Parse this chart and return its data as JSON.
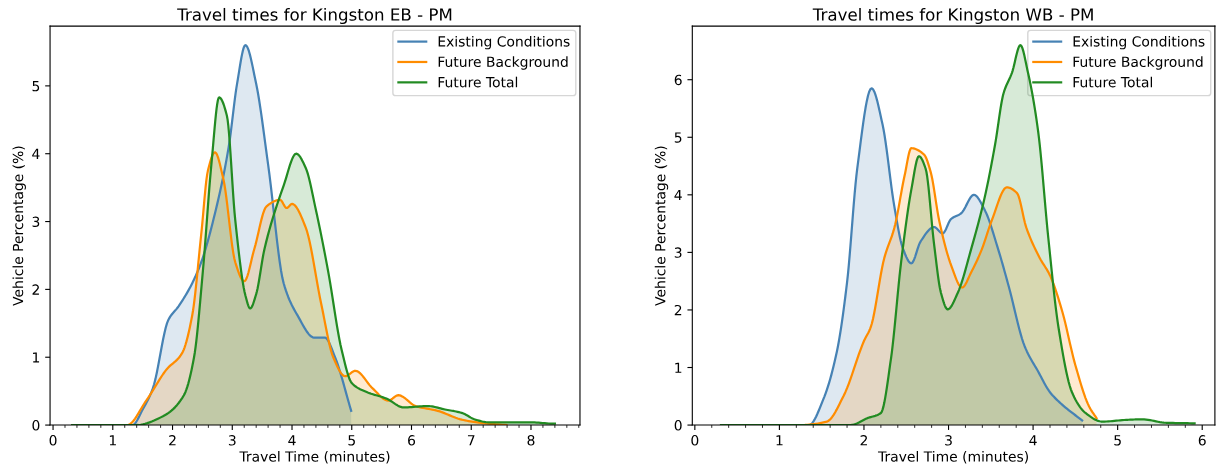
{
  "chart_data": [
    {
      "type": "area",
      "title": "Travel times for Kingston EB - PM",
      "xlabel": "Travel Time (minutes)",
      "ylabel": "Vehicle Percentage (%)",
      "xlim": [
        -0.05,
        8.82
      ],
      "xticks": [
        0,
        1,
        2,
        3,
        4,
        5,
        6,
        7,
        8
      ],
      "ylim": [
        0,
        5.88
      ],
      "yticks": [
        0,
        1,
        2,
        3,
        4,
        5
      ],
      "legend": "top right",
      "grid": false,
      "series": [
        {
          "name": "Existing Conditions",
          "color": "#4682b4",
          "x": [
            1.2,
            1.33,
            1.5,
            1.67,
            1.93,
            2.1,
            2.3,
            2.48,
            2.71,
            2.94,
            3.08,
            3.22,
            3.4,
            3.6,
            3.86,
            4.09,
            4.37,
            4.55,
            4.72,
            4.99
          ],
          "values": [
            0,
            0,
            0.23,
            0.54,
            1.55,
            1.75,
            2.04,
            2.4,
            3.12,
            4.1,
            5.03,
            5.6,
            5.03,
            3.84,
            2.09,
            1.62,
            1.29,
            1.29,
            1.0,
            0.21
          ]
        },
        {
          "name": "Future Background",
          "color": "#ff8c00",
          "x": [
            0.32,
            1.24,
            1.56,
            1.9,
            2.16,
            2.33,
            2.48,
            2.59,
            2.71,
            2.85,
            3.05,
            3.2,
            3.37,
            3.57,
            3.8,
            3.91,
            4.0,
            4.23,
            4.49,
            4.69,
            4.89,
            5.06,
            5.35,
            5.61,
            5.78,
            6.07,
            6.44,
            6.84,
            7.19,
            7.59
          ],
          "values": [
            0,
            0,
            0.36,
            0.82,
            1.06,
            1.62,
            2.81,
            3.74,
            4.02,
            3.63,
            2.4,
            2.12,
            2.6,
            3.22,
            3.32,
            3.2,
            3.26,
            2.91,
            1.78,
            1.0,
            0.72,
            0.8,
            0.54,
            0.36,
            0.44,
            0.28,
            0.21,
            0.08,
            0.03,
            0
          ]
        },
        {
          "name": "Future Total",
          "color": "#228b22",
          "x": [
            0.32,
            1.39,
            1.84,
            2.19,
            2.36,
            2.51,
            2.65,
            2.78,
            2.91,
            3.05,
            3.22,
            3.3,
            3.4,
            3.54,
            3.86,
            4.07,
            4.23,
            4.4,
            4.6,
            4.83,
            5.0,
            5.24,
            5.58,
            5.87,
            6.27,
            6.56,
            6.84,
            7.07,
            7.3,
            7.99,
            8.4
          ],
          "values": [
            0,
            0,
            0.13,
            0.44,
            1.0,
            2.29,
            3.84,
            4.83,
            4.56,
            3.02,
            1.91,
            1.72,
            1.93,
            2.6,
            3.53,
            4.0,
            3.79,
            3.17,
            2.29,
            1.11,
            0.62,
            0.49,
            0.39,
            0.26,
            0.28,
            0.23,
            0.18,
            0.08,
            0.04,
            0.04,
            0.02
          ]
        }
      ]
    },
    {
      "type": "area",
      "title": "Travel times for Kingston WB - PM",
      "xlabel": "Travel Time (minutes)",
      "ylabel": "Vehicle Percentage (%)",
      "xlim": [
        -0.03,
        6.15
      ],
      "xticks": [
        0,
        1,
        2,
        3,
        4,
        5,
        6
      ],
      "ylim": [
        0,
        6.93
      ],
      "yticks": [
        0,
        1,
        2,
        3,
        4,
        5,
        6
      ],
      "legend": "top right",
      "grid": false,
      "series": [
        {
          "name": "Existing Conditions",
          "color": "#4682b4",
          "x": [
            0.31,
            1.35,
            1.52,
            1.68,
            1.8,
            1.92,
            2.09,
            2.22,
            2.36,
            2.46,
            2.56,
            2.67,
            2.83,
            2.93,
            3.03,
            3.15,
            3.3,
            3.43,
            3.59,
            3.71,
            3.9,
            4.06,
            4.2,
            4.34,
            4.58
          ],
          "values": [
            0,
            0,
            0.45,
            1.28,
            2.48,
            4.45,
            5.85,
            5.22,
            3.79,
            3.07,
            2.81,
            3.19,
            3.44,
            3.33,
            3.58,
            3.68,
            4.0,
            3.73,
            3.04,
            2.42,
            1.37,
            0.93,
            0.57,
            0.36,
            0.08
          ]
        },
        {
          "name": "Future Background",
          "color": "#ff8c00",
          "x": [
            0.31,
            1.25,
            1.56,
            1.76,
            2.0,
            2.08,
            2.24,
            2.36,
            2.48,
            2.56,
            2.71,
            2.79,
            2.89,
            3.03,
            3.16,
            3.27,
            3.39,
            3.51,
            3.69,
            3.81,
            3.92,
            4.08,
            4.2,
            4.34,
            4.5,
            4.66,
            4.75
          ],
          "values": [
            0,
            0,
            0.06,
            0.51,
            1.46,
            1.7,
            2.9,
            3.43,
            4.33,
            4.81,
            4.7,
            4.39,
            3.55,
            2.78,
            2.39,
            2.66,
            3.04,
            3.55,
            4.13,
            4.03,
            3.43,
            2.9,
            2.6,
            2.0,
            1.04,
            0.33,
            0.12
          ]
        },
        {
          "name": "Future Total",
          "color": "#228b22",
          "x": [
            0.31,
            1.84,
            2.04,
            2.2,
            2.32,
            2.44,
            2.56,
            2.65,
            2.73,
            2.83,
            2.91,
            2.99,
            3.11,
            3.27,
            3.43,
            3.55,
            3.65,
            3.75,
            3.85,
            3.94,
            4.06,
            4.18,
            4.3,
            4.46,
            4.62,
            4.82,
            5.1,
            5.29,
            5.57,
            5.91
          ],
          "values": [
            0,
            0,
            0.12,
            0.21,
            1.16,
            2.84,
            4.09,
            4.67,
            4.45,
            3.13,
            2.3,
            2.01,
            2.3,
            3.07,
            3.97,
            4.87,
            5.76,
            6.12,
            6.6,
            6.12,
            5.1,
            3.25,
            1.7,
            0.57,
            0.21,
            0.06,
            0.09,
            0.1,
            0.04,
            0.03
          ]
        }
      ]
    }
  ]
}
